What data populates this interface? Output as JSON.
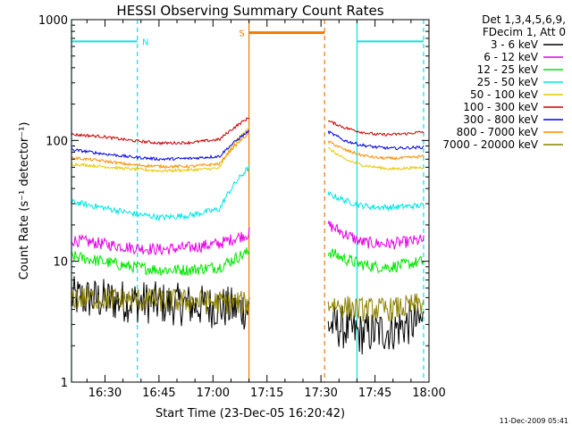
{
  "colors": {
    "background": "#ffffff",
    "axis": "#000000",
    "marker_cyan": "#00e5e5",
    "marker_orange": "#f07800"
  },
  "chart_data": {
    "type": "line",
    "title": "HESSI Observing Summary Count Rates",
    "xlabel": "Start Time (23-Dec-05 16:20:42)",
    "ylabel": "Count Rate (s⁻¹ detector⁻¹)",
    "yscale": "log",
    "xlim": [
      "16:20:42",
      "18:00"
    ],
    "ylim": [
      1,
      1000
    ],
    "x_ticks": [
      "16:30",
      "16:45",
      "17:00",
      "17:15",
      "17:30",
      "17:45",
      "18:00"
    ],
    "y_ticks": [
      "1",
      "10",
      "100",
      "1000"
    ],
    "grid": false,
    "legend_position": "top-right outside",
    "legend_header": [
      "Det 1,3,4,5,6,9,",
      "FDecim 1, Att 0"
    ],
    "timestamp": "11-Dec-2009 05:41",
    "segments": [
      {
        "start": "16:20:42",
        "end": "17:10:00"
      },
      {
        "start": "17:32:00",
        "end": "17:58:30"
      }
    ],
    "series": [
      {
        "name": "3 - 6 keV",
        "color": "#000000",
        "values": [
          [
            5.0,
            4.0
          ],
          [
            3.0,
            2.8,
            2.5,
            2.6,
            2.7,
            3.0,
            3.2
          ]
        ]
      },
      {
        "name": "6 - 12 keV",
        "color": "#e600e6",
        "values": [
          [
            15,
            14,
            13,
            12.5,
            13,
            14,
            17
          ],
          [
            20,
            17,
            14.5,
            14,
            14,
            14.5,
            15
          ]
        ]
      },
      {
        "name": "12 - 25 keV",
        "color": "#00e600",
        "values": [
          [
            11,
            10,
            9.0,
            8.5,
            8.5,
            9.0,
            12
          ],
          [
            12,
            10.5,
            9.5,
            9.0,
            9.0,
            9.5,
            10
          ]
        ]
      },
      {
        "name": "25 - 50 keV",
        "color": "#00e5e5",
        "values": [
          [
            31,
            28,
            25,
            23,
            24,
            27,
            60
          ],
          [
            36,
            32,
            29,
            28,
            28,
            28.5,
            29
          ]
        ]
      },
      {
        "name": "50 - 100 keV",
        "color": "#e6c800",
        "values": [
          [
            64,
            61,
            58,
            56,
            57,
            59,
            130
          ],
          [
            86,
            70,
            63,
            60,
            58,
            59,
            60
          ]
        ]
      },
      {
        "name": "100 - 300 keV",
        "color": "#c80000",
        "values": [
          [
            112,
            108,
            100,
            95,
            96,
            102,
            155
          ],
          [
            145,
            128,
            118,
            112,
            112,
            114,
            118
          ]
        ]
      },
      {
        "name": "300 - 800 keV",
        "color": "#0000e6",
        "values": [
          [
            84,
            78,
            73,
            70,
            71,
            74,
            120
          ],
          [
            118,
            100,
            92,
            88,
            86,
            87,
            88
          ]
        ]
      },
      {
        "name": "800 - 7000 keV",
        "color": "#ff8c00",
        "values": [
          [
            72,
            68,
            63,
            61,
            61,
            64,
            115
          ],
          [
            98,
            84,
            76,
            72,
            71,
            72,
            74
          ]
        ]
      },
      {
        "name": "7000 - 20000 keV",
        "color": "#8c8200",
        "values": [
          [
            5.0,
            4.5
          ],
          [
            4.5,
            4.2,
            4.0,
            4.0,
            4.0,
            4.2,
            4.5
          ]
        ]
      }
    ],
    "annotations": [
      {
        "label": "N",
        "kind": "bar",
        "color": "#00e5e5",
        "start": "16:20:42",
        "end": "16:39:00",
        "value": 660
      },
      {
        "label": "S",
        "kind": "bar",
        "color": "#f07800",
        "start": "17:10:00",
        "end": "17:31:00",
        "value": 780
      },
      {
        "label": "",
        "kind": "bar",
        "color": "#00e5e5",
        "start": "17:40:00",
        "end": "17:58:30",
        "value": 660
      }
    ],
    "vertical_markers": [
      {
        "time": "16:20:42",
        "style": "solid",
        "color": "#00e5e5"
      },
      {
        "time": "16:39:00",
        "style": "dashed",
        "color": "#00e5e5"
      },
      {
        "time": "17:10:00",
        "style": "solid",
        "color": "#f07800"
      },
      {
        "time": "17:31:00",
        "style": "dashed",
        "color": "#f07800"
      },
      {
        "time": "17:40:00",
        "style": "solid",
        "color": "#00e5e5"
      },
      {
        "time": "17:58:30",
        "style": "dashed",
        "color": "#00e5e5"
      }
    ]
  }
}
